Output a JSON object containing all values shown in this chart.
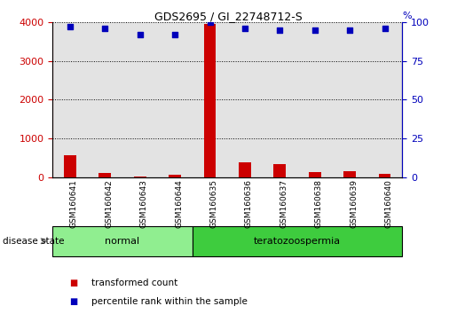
{
  "title": "GDS2695 / GI_22748712-S",
  "samples": [
    "GSM160641",
    "GSM160642",
    "GSM160643",
    "GSM160644",
    "GSM160635",
    "GSM160636",
    "GSM160637",
    "GSM160638",
    "GSM160639",
    "GSM160640"
  ],
  "transformed_counts": [
    570,
    120,
    18,
    80,
    3950,
    390,
    340,
    130,
    155,
    95
  ],
  "percentile_ranks": [
    97,
    96,
    92,
    92,
    100,
    96,
    95,
    95,
    95,
    96
  ],
  "groups": [
    {
      "label": "normal",
      "start": 0,
      "end": 3,
      "color": "#90EE90"
    },
    {
      "label": "teratozoospermia",
      "start": 4,
      "end": 9,
      "color": "#3ECC3E"
    }
  ],
  "ylim_left": [
    0,
    4000
  ],
  "ylim_right": [
    0,
    100
  ],
  "yticks_left": [
    0,
    1000,
    2000,
    3000,
    4000
  ],
  "yticks_right": [
    0,
    25,
    50,
    75,
    100
  ],
  "bar_color": "#CC0000",
  "dot_color": "#0000BB",
  "col_bg_color": "#C8C8C8",
  "legend_items": [
    {
      "label": "transformed count",
      "color": "#CC0000"
    },
    {
      "label": "percentile rank within the sample",
      "color": "#0000BB"
    }
  ],
  "disease_state_label": "disease state"
}
